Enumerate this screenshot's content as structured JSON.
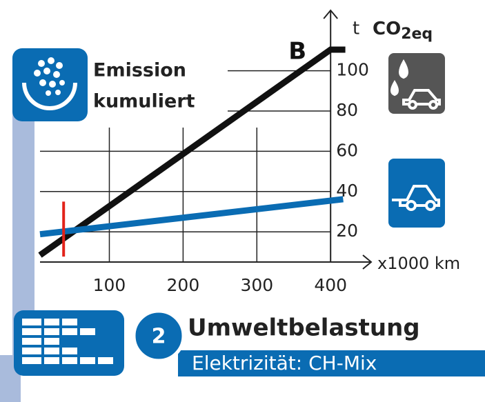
{
  "chart_data": {
    "type": "line",
    "heading": {
      "line1": "Emission",
      "line2": "kumuliert"
    },
    "badge": "2",
    "title": "Umweltbelastung",
    "subtitle": "Elektrizität: CH-Mix",
    "y_unit": "t",
    "y_label": {
      "base": "CO",
      "sub": "2eq"
    },
    "x_label": "x1000 km",
    "xlim": [
      6,
      455
    ],
    "xticks": [
      100,
      200,
      300,
      400
    ],
    "ylim": [
      5,
      130
    ],
    "yticks": [
      20,
      40,
      60,
      80,
      100
    ],
    "grid": true,
    "series": [
      {
        "name": "B",
        "color": "#111111",
        "x": [
          6,
          400,
          420
        ],
        "values": [
          8.4,
          110.5,
          110.5
        ]
      },
      {
        "color": "#0a6cb3",
        "x": [
          6,
          417
        ],
        "values": [
          18.8,
          36.2
        ]
      }
    ],
    "marker": {
      "x": 38,
      "range": [
        7.7,
        35
      ],
      "color": "#e2231a"
    }
  }
}
